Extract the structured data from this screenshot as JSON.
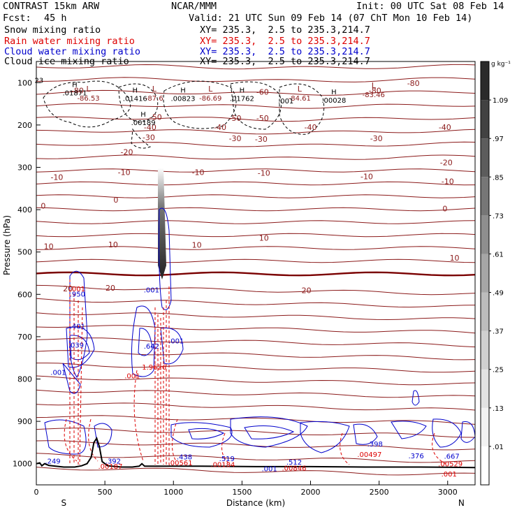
{
  "header": {
    "model": "CONTRAST 15km ARW",
    "org": "NCAR/MMM",
    "init": "Init: 00 UTC Sat 08 Feb 14",
    "fcst_label": "Fcst:",
    "fcst_value": "45 h",
    "valid": "Valid: 21 UTC Sun 09 Feb 14 (07 ChT Mon 10 Feb 14)",
    "fields": [
      {
        "name": "Snow mixing ratio",
        "xy": "XY= 235.3,  2.5 to 235.3,214.7",
        "color": "#000000"
      },
      {
        "name": "Rain water mixing ratio",
        "xy": "XY= 235.3,  2.5 to 235.3,214.7",
        "color": "#dd0000"
      },
      {
        "name": "Cloud water mixing ratio",
        "xy": "XY= 235.3,  2.5 to 235.3,214.7",
        "color": "#0000cc"
      },
      {
        "name": "Cloud ice mixing ratio",
        "xy": "XY= 235.3,  2.5 to 235.3,214.7",
        "color": "#000000"
      }
    ]
  },
  "chart_data": {
    "type": "cross-section",
    "xlabel": "Distance (km)",
    "ylabel": "Pressure (hPa)",
    "xlim": [
      0,
      3200
    ],
    "ylim": [
      1050,
      50
    ],
    "x_ticks": [
      0,
      500,
      1000,
      1500,
      2000,
      2500,
      3000
    ],
    "y_ticks": [
      100,
      200,
      300,
      400,
      500,
      600,
      700,
      800,
      900,
      1000
    ],
    "end_labels": {
      "left": "S",
      "right": "N"
    },
    "colorbar": {
      "unit": "g kg⁻¹",
      "ticks": [
        ".01",
        ".13",
        ".25",
        ".37",
        ".49",
        ".61",
        ".73",
        ".85",
        ".97",
        "1.09"
      ],
      "colors": [
        "#ffffff",
        "#f2f2f2",
        "#e2e2e2",
        "#d0d0d0",
        "#bcbcbc",
        "#a6a6a6",
        "#8e8e8e",
        "#767676",
        "#5c5c5c",
        "#424242",
        "#2a2a2a"
      ]
    },
    "temperature_isotherm_labels": [
      {
        "x": 300,
        "p": 125,
        "text": "-80"
      },
      {
        "x": 2750,
        "p": 108,
        "text": "-80"
      },
      {
        "x": 2470,
        "p": 125,
        "text": "-80"
      },
      {
        "x": 1650,
        "p": 128,
        "text": "-60"
      },
      {
        "x": 1450,
        "p": 190,
        "text": "-50"
      },
      {
        "x": 1650,
        "p": 190,
        "text": "-50"
      },
      {
        "x": 870,
        "p": 188,
        "text": "-50"
      },
      {
        "x": 1340,
        "p": 212,
        "text": "-40"
      },
      {
        "x": 2000,
        "p": 212,
        "text": "-40"
      },
      {
        "x": 2980,
        "p": 212,
        "text": "-40"
      },
      {
        "x": 830,
        "p": 212,
        "text": "-40"
      },
      {
        "x": 820,
        "p": 236,
        "text": "-30"
      },
      {
        "x": 1450,
        "p": 238,
        "text": "-30"
      },
      {
        "x": 1640,
        "p": 240,
        "text": "-30"
      },
      {
        "x": 2480,
        "p": 238,
        "text": "-30"
      },
      {
        "x": 660,
        "p": 270,
        "text": "-20"
      },
      {
        "x": 2990,
        "p": 295,
        "text": "-20"
      },
      {
        "x": 150,
        "p": 330,
        "text": "-10"
      },
      {
        "x": 640,
        "p": 318,
        "text": "-10"
      },
      {
        "x": 1180,
        "p": 318,
        "text": "-10"
      },
      {
        "x": 1660,
        "p": 320,
        "text": "-10"
      },
      {
        "x": 2410,
        "p": 328,
        "text": "-10"
      },
      {
        "x": 3000,
        "p": 340,
        "text": "-10"
      },
      {
        "x": 50,
        "p": 397,
        "text": "0"
      },
      {
        "x": 580,
        "p": 383,
        "text": "0"
      },
      {
        "x": 2980,
        "p": 404,
        "text": "0"
      },
      {
        "x": 90,
        "p": 493,
        "text": "10"
      },
      {
        "x": 560,
        "p": 489,
        "text": "10"
      },
      {
        "x": 1170,
        "p": 490,
        "text": "10"
      },
      {
        "x": 1660,
        "p": 473,
        "text": "10"
      },
      {
        "x": 3050,
        "p": 520,
        "text": "10"
      },
      {
        "x": 230,
        "p": 593,
        "text": "20"
      },
      {
        "x": 540,
        "p": 591,
        "text": "20"
      },
      {
        "x": 1970,
        "p": 597,
        "text": "20"
      }
    ],
    "high_labels": [
      {
        "x": 280,
        "p": 130,
        "value": ".01871"
      },
      {
        "x": 720,
        "p": 143,
        "value": ".01416"
      },
      {
        "x": 1070,
        "p": 143,
        "value": ".00823"
      },
      {
        "x": 1500,
        "p": 143,
        "value": ".01762"
      },
      {
        "x": 2170,
        "p": 147,
        "value": ".00028"
      },
      {
        "x": 780,
        "p": 200,
        "value": ".00189"
      }
    ],
    "low_labels": [
      {
        "x": 380,
        "p": 88,
        "value": "-86.53"
      },
      {
        "x": 860,
        "p": 88,
        "value": "-87.6"
      },
      {
        "x": 1270,
        "p": 88,
        "value": "-86.69"
      },
      {
        "x": 1920,
        "p": 88,
        "value": "-84.61"
      },
      {
        "x": 2460,
        "p": 80,
        "value": "-83.46"
      }
    ],
    "misc_labels": [
      {
        "x": 20,
        "p": 100,
        "text": "23",
        "color": "#000000"
      },
      {
        "x": 1820,
        "p": 149,
        "text": ".001",
        "color": "#000000"
      },
      {
        "x": 300,
        "p": 605,
        "text": ".950",
        "color": "#0000cc"
      },
      {
        "x": 300,
        "p": 593,
        "text": ".001",
        "color": "#dd0000"
      },
      {
        "x": 300,
        "p": 681,
        "text": ".401",
        "color": "#0000cc"
      },
      {
        "x": 290,
        "p": 726,
        "text": ".039",
        "color": "#0000cc"
      },
      {
        "x": 160,
        "p": 790,
        "text": ".001",
        "color": "#0000cc"
      },
      {
        "x": 840,
        "p": 595,
        "text": ".001",
        "color": "#0000cc"
      },
      {
        "x": 840,
        "p": 728,
        "text": ".642",
        "color": "#0000cc"
      },
      {
        "x": 1020,
        "p": 716,
        "text": ".001",
        "color": "#0000cc"
      },
      {
        "x": 860,
        "p": 778,
        "text": "1.9626",
        "color": "#dd0000"
      },
      {
        "x": 700,
        "p": 798,
        "text": ".001",
        "color": "#dd0000"
      },
      {
        "x": 120,
        "p": 1000,
        "text": ".249",
        "color": "#0000cc"
      },
      {
        "x": 560,
        "p": 1000,
        "text": ".392",
        "color": "#0000cc"
      },
      {
        "x": 540,
        "p": 1012,
        "text": ".00187",
        "color": "#dd0000"
      },
      {
        "x": 1080,
        "p": 990,
        "text": ".438",
        "color": "#0000cc"
      },
      {
        "x": 1050,
        "p": 1004,
        "text": ".00561",
        "color": "#dd0000"
      },
      {
        "x": 1390,
        "p": 994,
        "text": ".519",
        "color": "#0000cc"
      },
      {
        "x": 1360,
        "p": 1008,
        "text": ".00184",
        "color": "#dd0000"
      },
      {
        "x": 1880,
        "p": 1002,
        "text": ".512",
        "color": "#0000cc"
      },
      {
        "x": 1880,
        "p": 1016,
        "text": ".00846",
        "color": "#dd0000"
      },
      {
        "x": 1700,
        "p": 1018,
        "text": ".001",
        "color": "#0000cc"
      },
      {
        "x": 2470,
        "p": 959,
        "text": ".398",
        "color": "#0000cc"
      },
      {
        "x": 2430,
        "p": 984,
        "text": ".00497",
        "color": "#dd0000"
      },
      {
        "x": 2770,
        "p": 987,
        "text": ".376",
        "color": "#0000cc"
      },
      {
        "x": 3030,
        "p": 988,
        "text": ".667",
        "color": "#0000cc"
      },
      {
        "x": 3020,
        "p": 1006,
        "text": ".00529",
        "color": "#dd0000"
      },
      {
        "x": 3010,
        "p": 1030,
        "text": ".001",
        "color": "#dd0000"
      }
    ]
  }
}
